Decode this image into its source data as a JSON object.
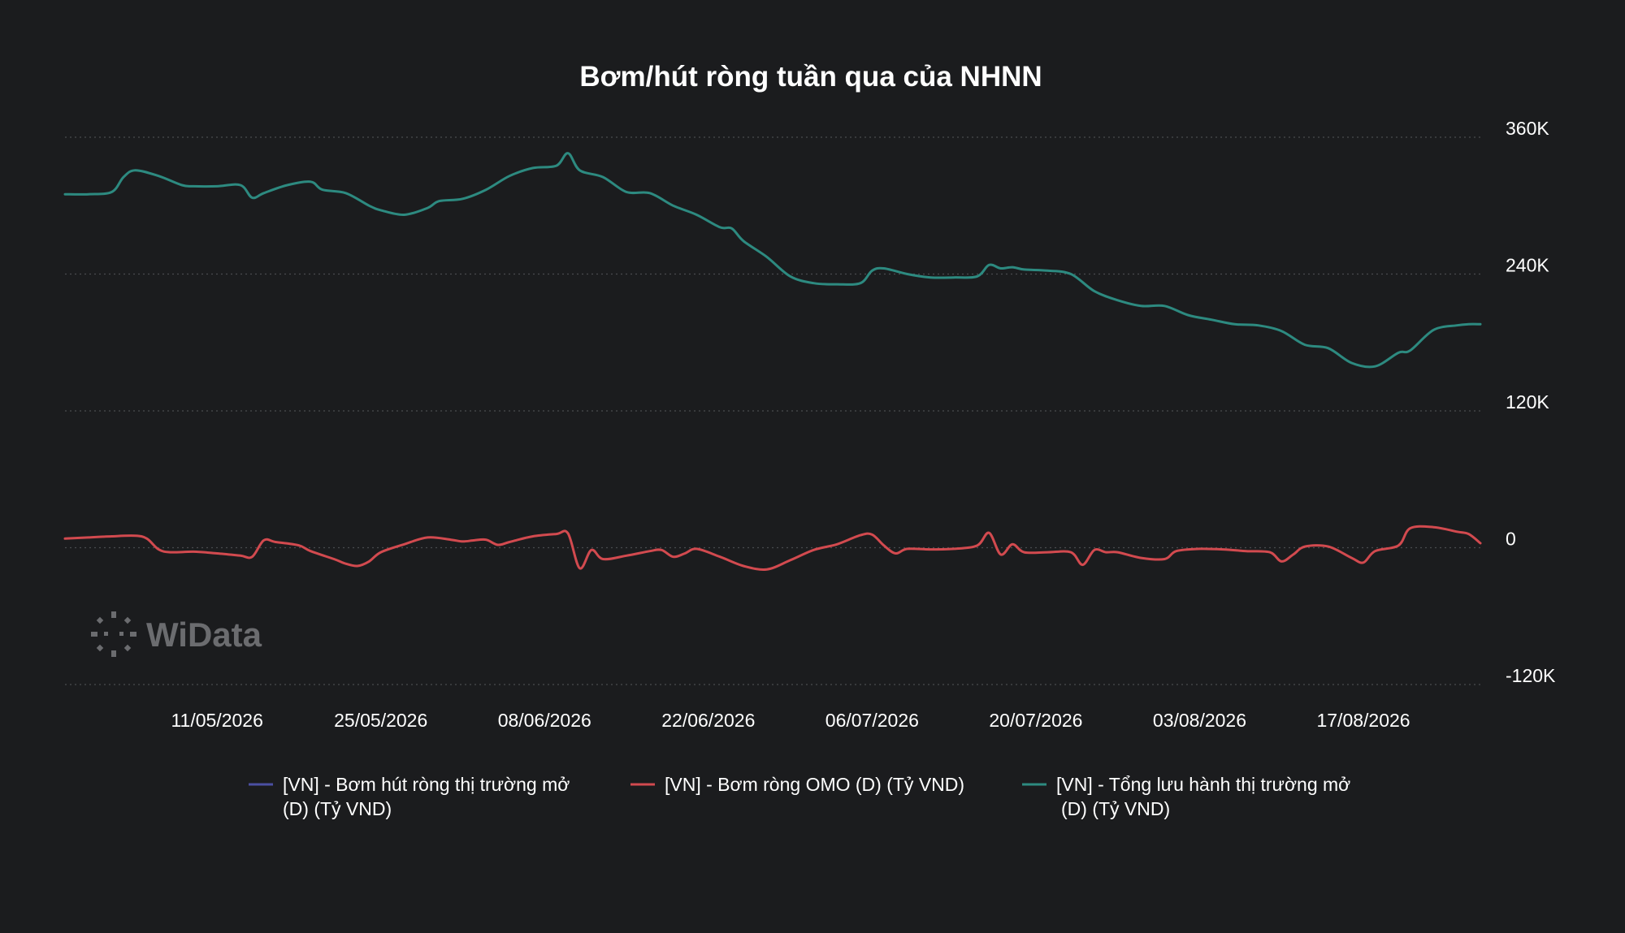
{
  "chart_data": {
    "type": "line",
    "title": "Bơm/hút ròng tuần qua của NHNN",
    "watermark": "WiData",
    "colors": {
      "background": "#1b1c1e",
      "grid": "#4a4b4e",
      "text": "#ffffff",
      "watermark": "#6b6c6f"
    },
    "y_axis": {
      "position": "right",
      "ticks": [
        360000,
        240000,
        120000,
        0,
        -120000
      ],
      "tick_labels": [
        "360K",
        "240K",
        "120K",
        "0",
        "-120K"
      ],
      "ylim": [
        -120000,
        360000
      ]
    },
    "x_axis": {
      "start": "2026-04-28",
      "end": "2026-08-27",
      "ticks": [
        "2026-05-11",
        "2026-05-25",
        "2026-06-08",
        "2026-06-22",
        "2026-07-06",
        "2026-07-20",
        "2026-08-03",
        "2026-08-17"
      ],
      "tick_labels": [
        "11/05/2026",
        "25/05/2026",
        "08/06/2026",
        "22/06/2026",
        "06/07/2026",
        "20/07/2026",
        "03/08/2026",
        "17/08/2026"
      ]
    },
    "grid": true,
    "legend_position": "bottom",
    "series": [
      {
        "name": "[VN] - Bơm hút ròng thị trường mở (D) (Tỷ VND)",
        "color": "#4b4fa3",
        "points": []
      },
      {
        "name": "[VN] - Bơm ròng OMO (D) (Tỷ VND)",
        "color": "#d24a4f",
        "points": [
          [
            "2026-04-28",
            8000
          ],
          [
            "2026-04-30",
            9000
          ],
          [
            "2026-05-02",
            10000
          ],
          [
            "2026-05-04",
            10500
          ],
          [
            "2026-05-05",
            8000
          ],
          [
            "2026-05-06",
            -1500
          ],
          [
            "2026-05-07",
            -4000
          ],
          [
            "2026-05-09",
            -3500
          ],
          [
            "2026-05-11",
            -5000
          ],
          [
            "2026-05-13",
            -7000
          ],
          [
            "2026-05-14",
            -8000
          ],
          [
            "2026-05-15",
            6500
          ],
          [
            "2026-05-16",
            5000
          ],
          [
            "2026-05-18",
            2000
          ],
          [
            "2026-05-19",
            -3000
          ],
          [
            "2026-05-21",
            -10000
          ],
          [
            "2026-05-22",
            -14000
          ],
          [
            "2026-05-23",
            -16000
          ],
          [
            "2026-05-24",
            -12000
          ],
          [
            "2026-05-25",
            -4000
          ],
          [
            "2026-05-27",
            3000
          ],
          [
            "2026-05-29",
            9000
          ],
          [
            "2026-05-31",
            7000
          ],
          [
            "2026-06-01",
            5500
          ],
          [
            "2026-06-02",
            6500
          ],
          [
            "2026-06-03",
            7000
          ],
          [
            "2026-06-04",
            2500
          ],
          [
            "2026-06-05",
            5000
          ],
          [
            "2026-06-07",
            10000
          ],
          [
            "2026-06-09",
            12000
          ],
          [
            "2026-06-10",
            12500
          ],
          [
            "2026-06-11",
            -18000
          ],
          [
            "2026-06-12",
            -2000
          ],
          [
            "2026-06-13",
            -10000
          ],
          [
            "2026-06-15",
            -7000
          ],
          [
            "2026-06-17",
            -3000
          ],
          [
            "2026-06-18",
            -2000
          ],
          [
            "2026-06-19",
            -8000
          ],
          [
            "2026-06-20",
            -5000
          ],
          [
            "2026-06-21",
            -1000
          ],
          [
            "2026-06-23",
            -8000
          ],
          [
            "2026-06-25",
            -16000
          ],
          [
            "2026-06-27",
            -19000
          ],
          [
            "2026-06-29",
            -11000
          ],
          [
            "2026-07-01",
            -2000
          ],
          [
            "2026-07-03",
            3000
          ],
          [
            "2026-07-05",
            11000
          ],
          [
            "2026-07-06",
            11500
          ],
          [
            "2026-07-07",
            2000
          ],
          [
            "2026-07-08",
            -5000
          ],
          [
            "2026-07-09",
            -1000
          ],
          [
            "2026-07-11",
            -1500
          ],
          [
            "2026-07-13",
            -1000
          ],
          [
            "2026-07-15",
            2000
          ],
          [
            "2026-07-16",
            13000
          ],
          [
            "2026-07-17",
            -6000
          ],
          [
            "2026-07-18",
            3000
          ],
          [
            "2026-07-19",
            -4000
          ],
          [
            "2026-07-21",
            -4000
          ],
          [
            "2026-07-23",
            -4000
          ],
          [
            "2026-07-24",
            -15000
          ],
          [
            "2026-07-25",
            -2000
          ],
          [
            "2026-07-26",
            -4000
          ],
          [
            "2026-07-27",
            -4000
          ],
          [
            "2026-07-29",
            -9000
          ],
          [
            "2026-07-31",
            -10000
          ],
          [
            "2026-08-01",
            -3000
          ],
          [
            "2026-08-03",
            -1000
          ],
          [
            "2026-08-05",
            -1500
          ],
          [
            "2026-08-07",
            -3000
          ],
          [
            "2026-08-09",
            -4000
          ],
          [
            "2026-08-10",
            -12000
          ],
          [
            "2026-08-11",
            -6000
          ],
          [
            "2026-08-12",
            1000
          ],
          [
            "2026-08-14",
            1000
          ],
          [
            "2026-08-16",
            -9000
          ],
          [
            "2026-08-17",
            -13000
          ],
          [
            "2026-08-18",
            -3000
          ],
          [
            "2026-08-20",
            2000
          ],
          [
            "2026-08-21",
            17000
          ],
          [
            "2026-08-23",
            18000
          ],
          [
            "2026-08-25",
            14000
          ],
          [
            "2026-08-26",
            12000
          ],
          [
            "2026-08-27",
            4000
          ]
        ]
      },
      {
        "name": "[VN] - Tổng lưu hành thị trường mở (D) (Tỷ VND)",
        "color": "#2d8a80",
        "points": [
          [
            "2026-04-28",
            310000
          ],
          [
            "2026-04-30",
            310000
          ],
          [
            "2026-05-02",
            312000
          ],
          [
            "2026-05-03",
            325000
          ],
          [
            "2026-05-04",
            331000
          ],
          [
            "2026-05-06",
            326000
          ],
          [
            "2026-05-08",
            318000
          ],
          [
            "2026-05-09",
            317000
          ],
          [
            "2026-05-11",
            317000
          ],
          [
            "2026-05-13",
            318000
          ],
          [
            "2026-05-14",
            307000
          ],
          [
            "2026-05-15",
            311000
          ],
          [
            "2026-05-17",
            318000
          ],
          [
            "2026-05-19",
            321000
          ],
          [
            "2026-05-20",
            314000
          ],
          [
            "2026-05-22",
            311000
          ],
          [
            "2026-05-24",
            300000
          ],
          [
            "2026-05-25",
            296000
          ],
          [
            "2026-05-27",
            292000
          ],
          [
            "2026-05-29",
            298000
          ],
          [
            "2026-05-30",
            304000
          ],
          [
            "2026-06-01",
            306000
          ],
          [
            "2026-06-03",
            314000
          ],
          [
            "2026-06-05",
            326000
          ],
          [
            "2026-06-07",
            333000
          ],
          [
            "2026-06-09",
            335000
          ],
          [
            "2026-06-10",
            346000
          ],
          [
            "2026-06-11",
            331000
          ],
          [
            "2026-06-13",
            325000
          ],
          [
            "2026-06-15",
            312000
          ],
          [
            "2026-06-17",
            311000
          ],
          [
            "2026-06-19",
            300000
          ],
          [
            "2026-06-21",
            292000
          ],
          [
            "2026-06-23",
            281000
          ],
          [
            "2026-06-24",
            280000
          ],
          [
            "2026-06-25",
            269000
          ],
          [
            "2026-06-27",
            255000
          ],
          [
            "2026-06-29",
            238000
          ],
          [
            "2026-07-01",
            232000
          ],
          [
            "2026-07-03",
            231000
          ],
          [
            "2026-07-05",
            232000
          ],
          [
            "2026-07-06",
            243000
          ],
          [
            "2026-07-07",
            245000
          ],
          [
            "2026-07-09",
            240000
          ],
          [
            "2026-07-11",
            237000
          ],
          [
            "2026-07-13",
            237000
          ],
          [
            "2026-07-15",
            238000
          ],
          [
            "2026-07-16",
            248000
          ],
          [
            "2026-07-17",
            245000
          ],
          [
            "2026-07-18",
            246000
          ],
          [
            "2026-07-19",
            244000
          ],
          [
            "2026-07-21",
            243000
          ],
          [
            "2026-07-23",
            240000
          ],
          [
            "2026-07-25",
            225000
          ],
          [
            "2026-07-27",
            217000
          ],
          [
            "2026-07-29",
            212000
          ],
          [
            "2026-07-31",
            212000
          ],
          [
            "2026-08-02",
            204000
          ],
          [
            "2026-08-04",
            200000
          ],
          [
            "2026-08-06",
            196000
          ],
          [
            "2026-08-08",
            195000
          ],
          [
            "2026-08-10",
            190000
          ],
          [
            "2026-08-12",
            178000
          ],
          [
            "2026-08-14",
            175000
          ],
          [
            "2026-08-16",
            162000
          ],
          [
            "2026-08-18",
            159000
          ],
          [
            "2026-08-20",
            171000
          ],
          [
            "2026-08-21",
            173000
          ],
          [
            "2026-08-23",
            191000
          ],
          [
            "2026-08-25",
            195000
          ],
          [
            "2026-08-26",
            196000
          ],
          [
            "2026-08-27",
            196000
          ]
        ]
      }
    ]
  }
}
